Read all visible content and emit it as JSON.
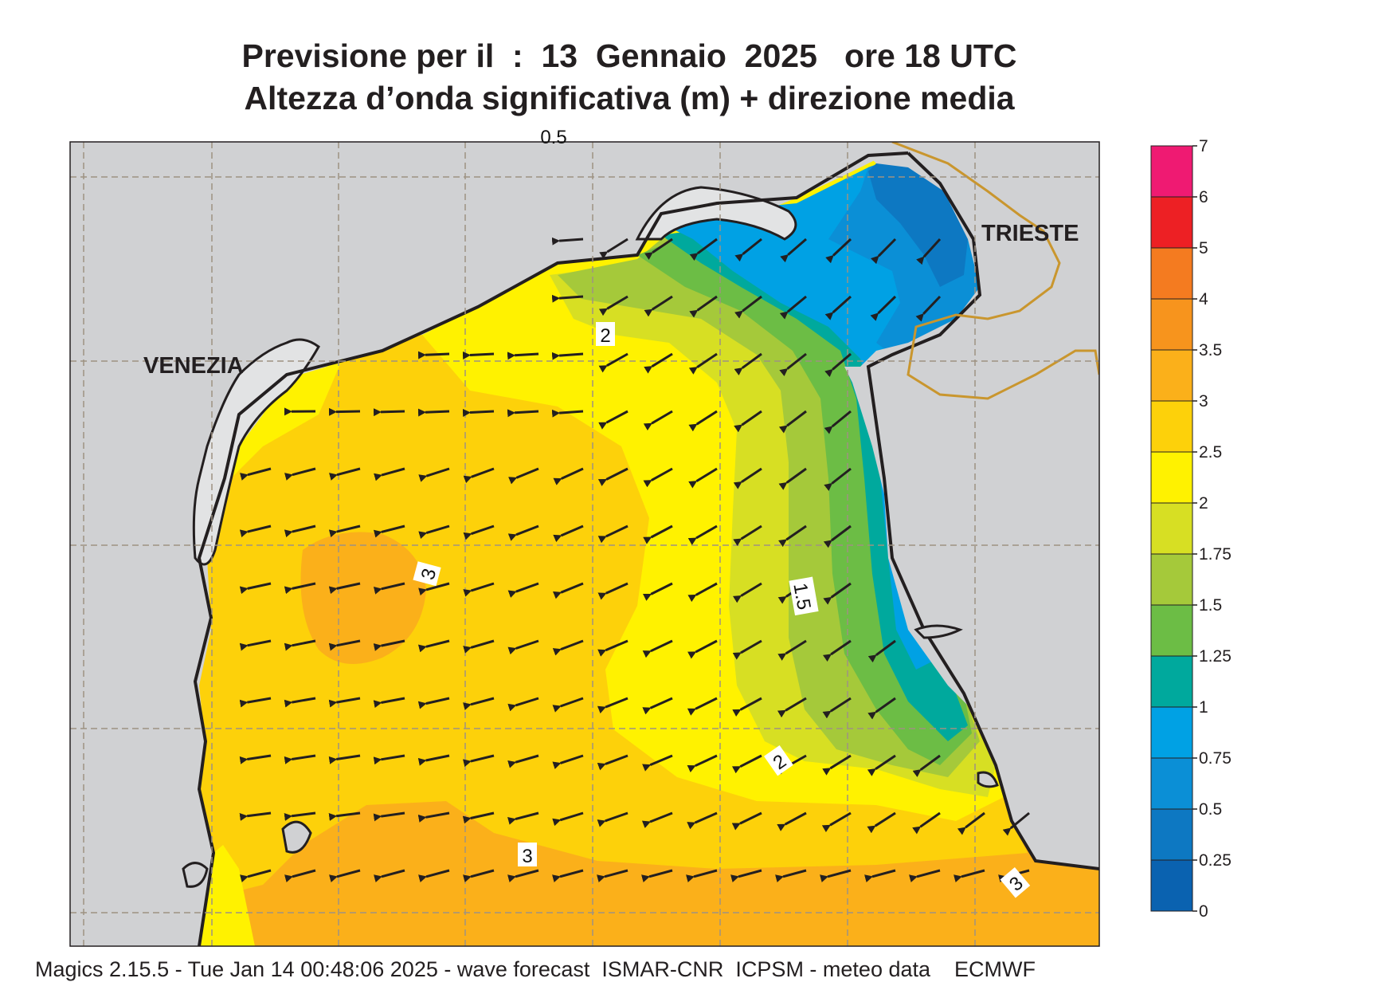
{
  "title": {
    "line1": "Previsione per il  :  13  Gennaio  2025   ore 18 UTC",
    "line2": "Altezza d’onda significativa (m) + direzione media"
  },
  "map": {
    "places": [
      "VENEZIA",
      "TRIESTE"
    ],
    "contour_labels": [
      "2",
      "3",
      "1.5",
      "2",
      "3",
      "3",
      "0.5"
    ],
    "land_color": "#d0d1d3",
    "coast_color": "#231f20",
    "border_color": "#c9962e",
    "grid_color": "#9e9282"
  },
  "colorbar": {
    "ticks": [
      "7",
      "6",
      "5",
      "4",
      "3.5",
      "3",
      "2.5",
      "2",
      "1.75",
      "1.5",
      "1.25",
      "1",
      "0.75",
      "0.5",
      "0.25",
      "0"
    ],
    "colors": [
      "#ef1a72",
      "#ed2024",
      "#f47b20",
      "#f7941d",
      "#fbb01a",
      "#fdd10a",
      "#fff200",
      "#d7df23",
      "#a5c93a",
      "#6cbd45",
      "#00a99d",
      "#00a1e4",
      "#0b8fd6",
      "#0d78c2",
      "#0a62b0"
    ]
  },
  "footer": "Magics 2.15.5 - Tue Jan 14 00:48:06 2025 - wave forecast  ISMAR-CNR  ICPSM - meteo data    ECMWF"
}
